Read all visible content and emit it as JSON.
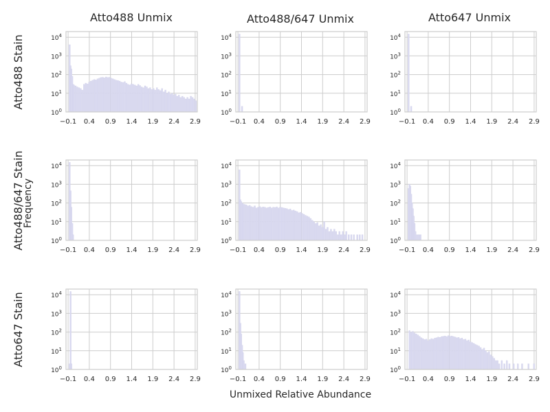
{
  "figure": {
    "xlabel": "Unmixed Relative Abundance",
    "ylabel": "Frequency"
  },
  "columns": [
    "Atto488 Unmix",
    "Atto488/647 Unmix",
    "Atto647 Unmix"
  ],
  "rows": [
    "Atto488 Stain",
    "Atto488/647 Stain",
    "Atto647 Stain"
  ],
  "colors": {
    "bar": "#d9d9f0",
    "bar_edge": "#cfcfe8",
    "grid": "#cccccc",
    "frame": "#cccccc",
    "text": "#262626"
  },
  "axis": {
    "xticks": [
      -0.1,
      0.4,
      0.9,
      1.4,
      1.9,
      2.4,
      2.9
    ],
    "xtick_labels": [
      "−0.1",
      "0.4",
      "0.9",
      "1.4",
      "1.9",
      "2.4",
      "2.9"
    ],
    "xlim": [
      -0.15,
      2.95
    ],
    "yscale": "log",
    "ylim": [
      1,
      20000
    ],
    "yticks": [
      1,
      10,
      100,
      1000,
      10000
    ],
    "ytick_base": "10",
    "ytick_exponents": [
      "0",
      "1",
      "2",
      "3",
      "4"
    ]
  },
  "chart_data": [
    {
      "type": "bar",
      "row": "Atto488 Stain",
      "column": "Atto488 Unmix",
      "bins": [
        [
          -0.08,
          4000
        ],
        [
          -0.06,
          300
        ],
        [
          -0.04,
          200
        ],
        [
          -0.02,
          80
        ],
        [
          0.0,
          30
        ],
        [
          0.02,
          28
        ],
        [
          0.06,
          25
        ],
        [
          0.1,
          22
        ],
        [
          0.14,
          20
        ],
        [
          0.18,
          18
        ],
        [
          0.22,
          15
        ],
        [
          0.26,
          30
        ],
        [
          0.3,
          35
        ],
        [
          0.34,
          32
        ],
        [
          0.38,
          40
        ],
        [
          0.42,
          45
        ],
        [
          0.46,
          50
        ],
        [
          0.5,
          55
        ],
        [
          0.54,
          52
        ],
        [
          0.58,
          60
        ],
        [
          0.62,
          65
        ],
        [
          0.66,
          70
        ],
        [
          0.7,
          72
        ],
        [
          0.74,
          68
        ],
        [
          0.78,
          75
        ],
        [
          0.82,
          70
        ],
        [
          0.86,
          72
        ],
        [
          0.9,
          65
        ],
        [
          0.94,
          60
        ],
        [
          0.98,
          55
        ],
        [
          1.02,
          50
        ],
        [
          1.06,
          48
        ],
        [
          1.1,
          45
        ],
        [
          1.14,
          40
        ],
        [
          1.18,
          38
        ],
        [
          1.22,
          42
        ],
        [
          1.26,
          35
        ],
        [
          1.3,
          30
        ],
        [
          1.34,
          28
        ],
        [
          1.38,
          32
        ],
        [
          1.42,
          30
        ],
        [
          1.46,
          28
        ],
        [
          1.5,
          25
        ],
        [
          1.54,
          30
        ],
        [
          1.58,
          26
        ],
        [
          1.62,
          22
        ],
        [
          1.66,
          20
        ],
        [
          1.7,
          25
        ],
        [
          1.74,
          22
        ],
        [
          1.78,
          18
        ],
        [
          1.82,
          20
        ],
        [
          1.86,
          16
        ],
        [
          1.9,
          18
        ],
        [
          1.94,
          15
        ],
        [
          1.98,
          20
        ],
        [
          2.02,
          16
        ],
        [
          2.06,
          14
        ],
        [
          2.1,
          18
        ],
        [
          2.14,
          12
        ],
        [
          2.18,
          15
        ],
        [
          2.22,
          10
        ],
        [
          2.26,
          12
        ],
        [
          2.3,
          9
        ],
        [
          2.34,
          10
        ],
        [
          2.38,
          8
        ],
        [
          2.42,
          9
        ],
        [
          2.46,
          7
        ],
        [
          2.5,
          8
        ],
        [
          2.54,
          6
        ],
        [
          2.58,
          7
        ],
        [
          2.62,
          6
        ],
        [
          2.66,
          5
        ],
        [
          2.7,
          6
        ],
        [
          2.74,
          5
        ],
        [
          2.78,
          7
        ],
        [
          2.82,
          6
        ],
        [
          2.86,
          5
        ],
        [
          2.9,
          4
        ]
      ]
    },
    {
      "type": "bar",
      "row": "Atto488 Stain",
      "column": "Atto488/647 Unmix",
      "bins": [
        [
          -0.08,
          15000
        ],
        [
          -0.02,
          2
        ]
      ]
    },
    {
      "type": "bar",
      "row": "Atto488 Stain",
      "column": "Atto647 Unmix",
      "bins": [
        [
          -0.08,
          15000
        ],
        [
          -0.02,
          2
        ]
      ]
    },
    {
      "type": "bar",
      "row": "Atto488/647 Stain",
      "column": "Atto488 Unmix",
      "bins": [
        [
          -0.08,
          15000
        ],
        [
          -0.06,
          450
        ],
        [
          -0.04,
          60
        ],
        [
          -0.02,
          8
        ],
        [
          0.0,
          2
        ]
      ]
    },
    {
      "type": "bar",
      "row": "Atto488/647 Stain",
      "column": "Atto488/647 Unmix",
      "bins": [
        [
          -0.08,
          6000
        ],
        [
          -0.06,
          150
        ],
        [
          -0.04,
          120
        ],
        [
          -0.02,
          100
        ],
        [
          0.0,
          90
        ],
        [
          0.04,
          85
        ],
        [
          0.08,
          80
        ],
        [
          0.12,
          70
        ],
        [
          0.16,
          75
        ],
        [
          0.2,
          65
        ],
        [
          0.24,
          60
        ],
        [
          0.28,
          70
        ],
        [
          0.32,
          55
        ],
        [
          0.36,
          60
        ],
        [
          0.4,
          65
        ],
        [
          0.44,
          58
        ],
        [
          0.48,
          62
        ],
        [
          0.52,
          60
        ],
        [
          0.56,
          55
        ],
        [
          0.6,
          58
        ],
        [
          0.64,
          62
        ],
        [
          0.68,
          55
        ],
        [
          0.72,
          60
        ],
        [
          0.76,
          58
        ],
        [
          0.8,
          62
        ],
        [
          0.84,
          55
        ],
        [
          0.88,
          60
        ],
        [
          0.92,
          58
        ],
        [
          0.96,
          55
        ],
        [
          1.0,
          52
        ],
        [
          1.04,
          50
        ],
        [
          1.08,
          45
        ],
        [
          1.12,
          48
        ],
        [
          1.16,
          40
        ],
        [
          1.2,
          42
        ],
        [
          1.24,
          38
        ],
        [
          1.28,
          35
        ],
        [
          1.32,
          30
        ],
        [
          1.36,
          32
        ],
        [
          1.4,
          28
        ],
        [
          1.44,
          25
        ],
        [
          1.48,
          22
        ],
        [
          1.52,
          20
        ],
        [
          1.56,
          18
        ],
        [
          1.6,
          15
        ],
        [
          1.64,
          12
        ],
        [
          1.68,
          10
        ],
        [
          1.72,
          8
        ],
        [
          1.76,
          9
        ],
        [
          1.8,
          6
        ],
        [
          1.84,
          7
        ],
        [
          1.88,
          5
        ],
        [
          1.92,
          10
        ],
        [
          1.96,
          4
        ],
        [
          2.0,
          5
        ],
        [
          2.04,
          3
        ],
        [
          2.08,
          4
        ],
        [
          2.12,
          3
        ],
        [
          2.16,
          4
        ],
        [
          2.2,
          3
        ],
        [
          2.24,
          2
        ],
        [
          2.28,
          3
        ],
        [
          2.32,
          2
        ],
        [
          2.36,
          3
        ],
        [
          2.4,
          2
        ],
        [
          2.44,
          3
        ],
        [
          2.5,
          2
        ],
        [
          2.56,
          2
        ],
        [
          2.62,
          2
        ],
        [
          2.7,
          2
        ],
        [
          2.76,
          2
        ],
        [
          2.82,
          2
        ]
      ]
    },
    {
      "type": "bar",
      "row": "Atto488/647 Stain",
      "column": "Atto647 Unmix",
      "bins": [
        [
          -0.08,
          600
        ],
        [
          -0.06,
          1000
        ],
        [
          -0.04,
          800
        ],
        [
          -0.02,
          300
        ],
        [
          0.0,
          100
        ],
        [
          0.02,
          50
        ],
        [
          0.04,
          20
        ],
        [
          0.06,
          8
        ],
        [
          0.08,
          3
        ],
        [
          0.12,
          2
        ],
        [
          0.16,
          2
        ],
        [
          0.2,
          2
        ]
      ]
    },
    {
      "type": "bar",
      "row": "Atto647 Stain",
      "column": "Atto488 Unmix",
      "bins": [
        [
          -0.08,
          2
        ],
        [
          -0.06,
          15000
        ],
        [
          -0.04,
          2
        ]
      ]
    },
    {
      "type": "bar",
      "row": "Atto647 Stain",
      "column": "Atto488/647 Unmix",
      "bins": [
        [
          -0.08,
          15000
        ],
        [
          -0.06,
          300
        ],
        [
          -0.04,
          80
        ],
        [
          -0.02,
          20
        ],
        [
          0.0,
          8
        ],
        [
          0.02,
          3
        ],
        [
          0.06,
          2
        ]
      ]
    },
    {
      "type": "bar",
      "row": "Atto647 Stain",
      "column": "Atto647 Unmix",
      "bins": [
        [
          -0.06,
          120
        ],
        [
          -0.02,
          100
        ],
        [
          0.02,
          110
        ],
        [
          0.06,
          90
        ],
        [
          0.1,
          80
        ],
        [
          0.14,
          70
        ],
        [
          0.18,
          60
        ],
        [
          0.22,
          50
        ],
        [
          0.26,
          45
        ],
        [
          0.3,
          40
        ],
        [
          0.34,
          42
        ],
        [
          0.38,
          35
        ],
        [
          0.42,
          40
        ],
        [
          0.46,
          45
        ],
        [
          0.5,
          42
        ],
        [
          0.54,
          48
        ],
        [
          0.58,
          50
        ],
        [
          0.62,
          55
        ],
        [
          0.66,
          52
        ],
        [
          0.7,
          58
        ],
        [
          0.74,
          60
        ],
        [
          0.78,
          62
        ],
        [
          0.82,
          58
        ],
        [
          0.86,
          65
        ],
        [
          0.9,
          60
        ],
        [
          0.94,
          62
        ],
        [
          0.98,
          58
        ],
        [
          1.02,
          55
        ],
        [
          1.06,
          50
        ],
        [
          1.1,
          52
        ],
        [
          1.14,
          45
        ],
        [
          1.18,
          48
        ],
        [
          1.22,
          40
        ],
        [
          1.26,
          42
        ],
        [
          1.3,
          35
        ],
        [
          1.34,
          38
        ],
        [
          1.38,
          30
        ],
        [
          1.42,
          28
        ],
        [
          1.46,
          25
        ],
        [
          1.5,
          22
        ],
        [
          1.54,
          20
        ],
        [
          1.58,
          18
        ],
        [
          1.62,
          15
        ],
        [
          1.66,
          12
        ],
        [
          1.7,
          14
        ],
        [
          1.74,
          10
        ],
        [
          1.78,
          8
        ],
        [
          1.82,
          9
        ],
        [
          1.86,
          6
        ],
        [
          1.9,
          5
        ],
        [
          1.94,
          4
        ],
        [
          1.98,
          3
        ],
        [
          2.02,
          3
        ],
        [
          2.06,
          2
        ],
        [
          2.12,
          3
        ],
        [
          2.18,
          2
        ],
        [
          2.24,
          3
        ],
        [
          2.3,
          2
        ],
        [
          2.4,
          2
        ],
        [
          2.5,
          2
        ],
        [
          2.6,
          2
        ],
        [
          2.75,
          2
        ],
        [
          2.88,
          2
        ]
      ]
    }
  ]
}
